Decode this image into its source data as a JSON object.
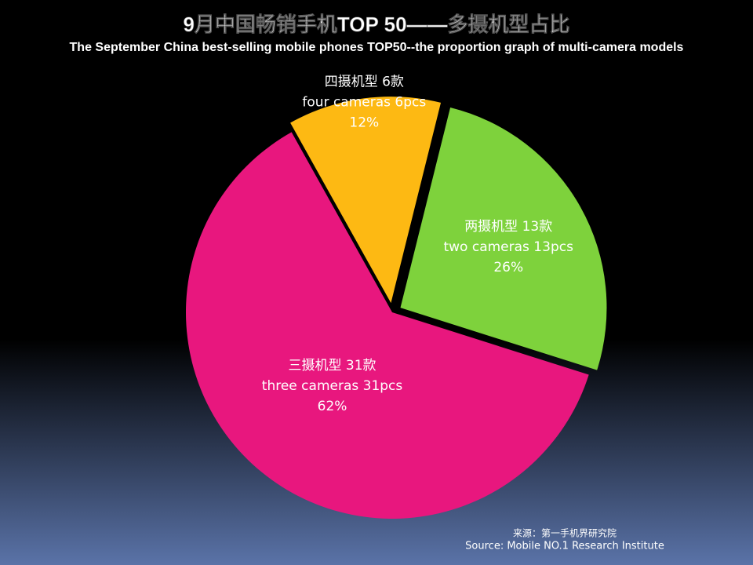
{
  "chart_data": {
    "type": "pie",
    "title": "9月中国畅销手机TOP 50——多摄机型占比",
    "subtitle": "The September China best-selling mobile phones TOP50--the proportion graph of multi-camera models",
    "categories": [
      "两摄机型 13款",
      "三摄机型 31款",
      "四摄机型 6款"
    ],
    "categories_en": [
      "two cameras 13pcs",
      "three cameras 31pcs",
      "four cameras 6pcs"
    ],
    "values": [
      26,
      62,
      12
    ],
    "value_labels": [
      "26%",
      "62%",
      "12%"
    ],
    "colors": [
      "#7ed23c",
      "#e8177e",
      "#fdb913"
    ],
    "source": "来源：第一手机界研究院",
    "source_en": "Source: Mobile NO.1 Research Institute"
  }
}
